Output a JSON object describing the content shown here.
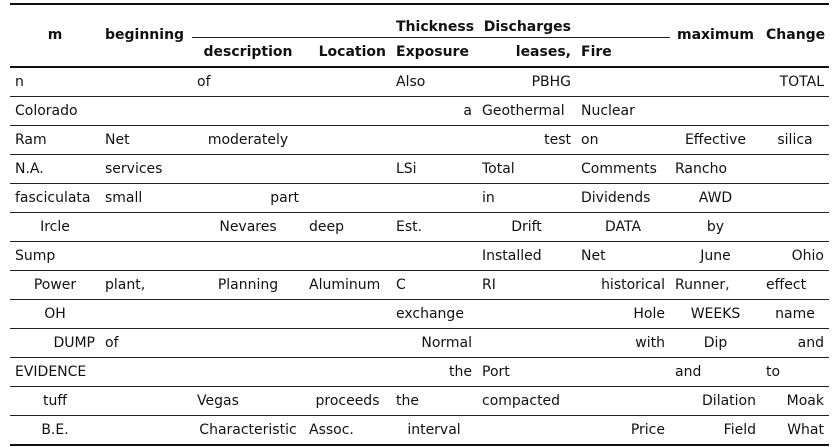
{
  "header": {
    "col1": "m",
    "col2": "beginning",
    "group_thickness": "Thickness",
    "group_discharges": "Discharges",
    "sub_description": "description",
    "sub_location": "Location",
    "sub_exposure": "Exposure",
    "sub_leases": "leases,",
    "sub_fire": "Fire",
    "col_maximum": "maximum",
    "col_change": "Change"
  },
  "rows": [
    [
      "n",
      "",
      "of",
      "",
      "Also",
      "PBHG",
      "",
      "",
      "TOTAL"
    ],
    [
      "Colorado",
      "",
      "",
      "",
      "a",
      "Geothermal",
      "Nuclear",
      "",
      ""
    ],
    [
      "Ram",
      "Net",
      "moderately",
      "",
      "",
      "test",
      "on",
      "Effective",
      "silica"
    ],
    [
      "N.A.",
      "services",
      "",
      "",
      "LSi",
      "Total",
      "Comments",
      "Rancho",
      ""
    ],
    [
      "fasciculata",
      "small",
      "part",
      "",
      "",
      "in",
      "Dividends",
      "AWD",
      ""
    ],
    [
      "Ircle",
      "",
      "Nevares",
      "deep",
      "Est.",
      "Drift",
      "DATA",
      "by",
      ""
    ],
    [
      "Sump",
      "",
      "",
      "",
      "",
      "Installed",
      "Net",
      "June",
      "Ohio"
    ],
    [
      "Power",
      "plant,",
      "Planning",
      "Aluminum",
      "C",
      "RI",
      "historical",
      "Runner,",
      "effect"
    ],
    [
      "OH",
      "",
      "",
      "",
      "exchange",
      "",
      "Hole",
      "WEEKS",
      "name"
    ],
    [
      "DUMP",
      "of",
      "",
      "",
      "Normal",
      "",
      "with",
      "Dip",
      "and"
    ],
    [
      "EVIDENCE",
      "",
      "",
      "",
      "the",
      "Port",
      "",
      "and",
      "to"
    ],
    [
      "tuff",
      "",
      "Vegas",
      "proceeds",
      "the",
      "compacted",
      "",
      "Dilation",
      "Moak"
    ],
    [
      "B.E.",
      "",
      "Characteristic",
      "Assoc.",
      "interval",
      "",
      "Price",
      "Field",
      "What"
    ]
  ],
  "alignment": [
    [
      "l",
      "l",
      "l",
      "l",
      "l",
      "r",
      "l",
      "l",
      "r"
    ],
    [
      "l",
      "l",
      "l",
      "l",
      "r",
      "l",
      "l",
      "l",
      "l"
    ],
    [
      "l",
      "l",
      "c",
      "l",
      "l",
      "r",
      "l",
      "c",
      "c"
    ],
    [
      "l",
      "l",
      "l",
      "l",
      "l",
      "l",
      "l",
      "l",
      "l"
    ],
    [
      "l",
      "l",
      "r",
      "l",
      "l",
      "l",
      "l",
      "c",
      "l"
    ],
    [
      "c",
      "l",
      "c",
      "l",
      "l",
      "c",
      "c",
      "c",
      "l"
    ],
    [
      "l",
      "l",
      "l",
      "l",
      "l",
      "l",
      "l",
      "c",
      "r"
    ],
    [
      "c",
      "l",
      "c",
      "l",
      "l",
      "l",
      "r",
      "l",
      "l"
    ],
    [
      "c",
      "l",
      "l",
      "l",
      "l",
      "l",
      "r",
      "c",
      "c"
    ],
    [
      "r",
      "l",
      "l",
      "l",
      "r",
      "l",
      "r",
      "c",
      "r"
    ],
    [
      "l",
      "l",
      "l",
      "l",
      "r",
      "l",
      "l",
      "l",
      "l"
    ],
    [
      "c",
      "l",
      "l",
      "c",
      "l",
      "l",
      "l",
      "r",
      "r"
    ],
    [
      "c",
      "l",
      "c",
      "l",
      "c",
      "l",
      "r",
      "r",
      "r"
    ]
  ]
}
